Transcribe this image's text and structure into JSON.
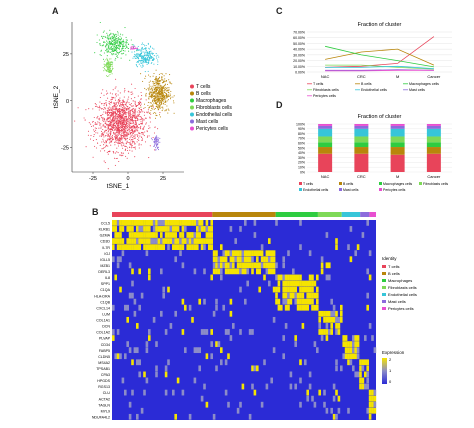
{
  "panels": {
    "a": "A",
    "b": "B",
    "c": "C",
    "d": "D"
  },
  "colors": {
    "tcells": "#e8445a",
    "bcells": "#b8860b",
    "macro": "#2ecc40",
    "fibro": "#7ed957",
    "endo": "#37c5d9",
    "mast": "#8c6bdc",
    "peri": "#e84fd0",
    "heatLow": "#2b2bd6",
    "heatMid": "#8c8cc8",
    "heatHigh": "#f5e400"
  },
  "chart_data": [
    {
      "type": "scatter",
      "panel": "A",
      "xlabel": "tSNE_1",
      "ylabel": "tSNE_2",
      "x_ticks": [
        "-25",
        "0",
        "25"
      ],
      "y_ticks": [
        "25",
        "0",
        "-25"
      ],
      "legend_position": "right",
      "legend": [
        "T cells",
        "B cells",
        "Macrophages",
        "Fibroblasts cells",
        "Endothelial cells",
        "Mast cells",
        "Pericytes cells"
      ],
      "clusters": [
        {
          "name": "T cells",
          "center": [
            -5,
            -12
          ],
          "spread": [
            16,
            13
          ]
        },
        {
          "name": "B cells",
          "center": [
            22,
            4
          ],
          "spread": [
            7,
            9
          ]
        },
        {
          "name": "Macrophages",
          "center": [
            -10,
            30
          ],
          "spread": [
            9,
            6
          ]
        },
        {
          "name": "Fibroblasts cells",
          "center": [
            -14,
            18
          ],
          "spread": [
            3,
            4
          ]
        },
        {
          "name": "Endothelial cells",
          "center": [
            12,
            24
          ],
          "spread": [
            7,
            5
          ]
        },
        {
          "name": "Mast cells",
          "center": [
            20,
            -22
          ],
          "spread": [
            2,
            4
          ]
        },
        {
          "name": "Pericytes cells",
          "center": [
            4,
            28
          ],
          "spread": [
            2,
            1
          ]
        }
      ]
    },
    {
      "type": "line",
      "panel": "C",
      "title": "Fraction of cluster",
      "categories": [
        "NAC",
        "CRC",
        "M",
        "Cancer"
      ],
      "y_ticks": [
        "70.00%",
        "60.00%",
        "50.00%",
        "40.00%",
        "30.00%",
        "20.00%",
        "10.00%",
        "0.00%"
      ],
      "ylim": [
        0,
        70
      ],
      "series": [
        {
          "name": "T cells",
          "values": [
            8,
            10,
            15,
            62
          ]
        },
        {
          "name": "B cells",
          "values": [
            22,
            35,
            40,
            12
          ]
        },
        {
          "name": "Macrophages cells",
          "values": [
            45,
            30,
            20,
            9
          ]
        },
        {
          "name": "Fibroblasts cells",
          "values": [
            12,
            12,
            8,
            5
          ]
        },
        {
          "name": "Endothelial cells",
          "values": [
            8,
            8,
            10,
            6
          ]
        },
        {
          "name": "Mast cells",
          "values": [
            3,
            3,
            4,
            3
          ]
        },
        {
          "name": "Pericytes cells",
          "values": [
            2,
            2,
            3,
            3
          ]
        }
      ],
      "legend_position": "bottom"
    },
    {
      "type": "bar",
      "stacked": true,
      "panel": "D",
      "title": "Fraction of cluster",
      "categories": [
        "NAC",
        "CRC",
        "M",
        "Cancer"
      ],
      "y_ticks": [
        "100%",
        "90%",
        "80%",
        "70%",
        "60%",
        "50%",
        "40%",
        "30%",
        "20%",
        "10%",
        "0%"
      ],
      "ylim": [
        0,
        100
      ],
      "series": [
        {
          "name": "T cells",
          "values": [
            38,
            38,
            36,
            38
          ]
        },
        {
          "name": "B cells",
          "values": [
            14,
            14,
            16,
            14
          ]
        },
        {
          "name": "Macrophages cells",
          "values": [
            10,
            10,
            10,
            10
          ]
        },
        {
          "name": "Fibroblasts cells",
          "values": [
            12,
            12,
            12,
            12
          ]
        },
        {
          "name": "Endothelial cells",
          "values": [
            16,
            16,
            16,
            16
          ]
        },
        {
          "name": "Mast cells",
          "values": [
            6,
            6,
            6,
            6
          ]
        },
        {
          "name": "Pericytes cells",
          "values": [
            4,
            4,
            4,
            4
          ]
        }
      ],
      "legend_position": "bottom"
    },
    {
      "type": "heatmap",
      "panel": "B",
      "genes": [
        "CCL5",
        "KLRB1",
        "GZMA",
        "CD3D",
        "IL7R",
        "IGJ",
        "IGLL5",
        "MZB1",
        "DERL3",
        "IL8",
        "SPP1",
        "C1QA",
        "HLA-DRA",
        "C1QB",
        "CXCL14",
        "LUM",
        "COL1A1",
        "DCN",
        "COL1A2",
        "PLVAP",
        "CD34",
        "FABP5",
        "CLDN5",
        "MS4A2",
        "TPSAB1",
        "CPA3",
        "HPGDS",
        "RGS13",
        "CLU",
        "ACTA2",
        "TAGLN",
        "MYL9",
        "NDUFA4L2"
      ],
      "identity_title": "Identity",
      "identities": [
        "T cells",
        "B cells",
        "Macrophages",
        "Fibroblasts cells",
        "Endothelial cells",
        "Mast cells",
        "Pericytes cells"
      ],
      "expression_title": "Expression",
      "expression_ticks": [
        "2",
        "1",
        "0"
      ],
      "group_fractions": [
        0.38,
        0.24,
        0.16,
        0.09,
        0.07,
        0.035,
        0.025
      ],
      "group_gene_ranges": [
        [
          0,
          4
        ],
        [
          5,
          8
        ],
        [
          9,
          14
        ],
        [
          15,
          18
        ],
        [
          19,
          22
        ],
        [
          23,
          27
        ],
        [
          28,
          32
        ]
      ]
    }
  ]
}
